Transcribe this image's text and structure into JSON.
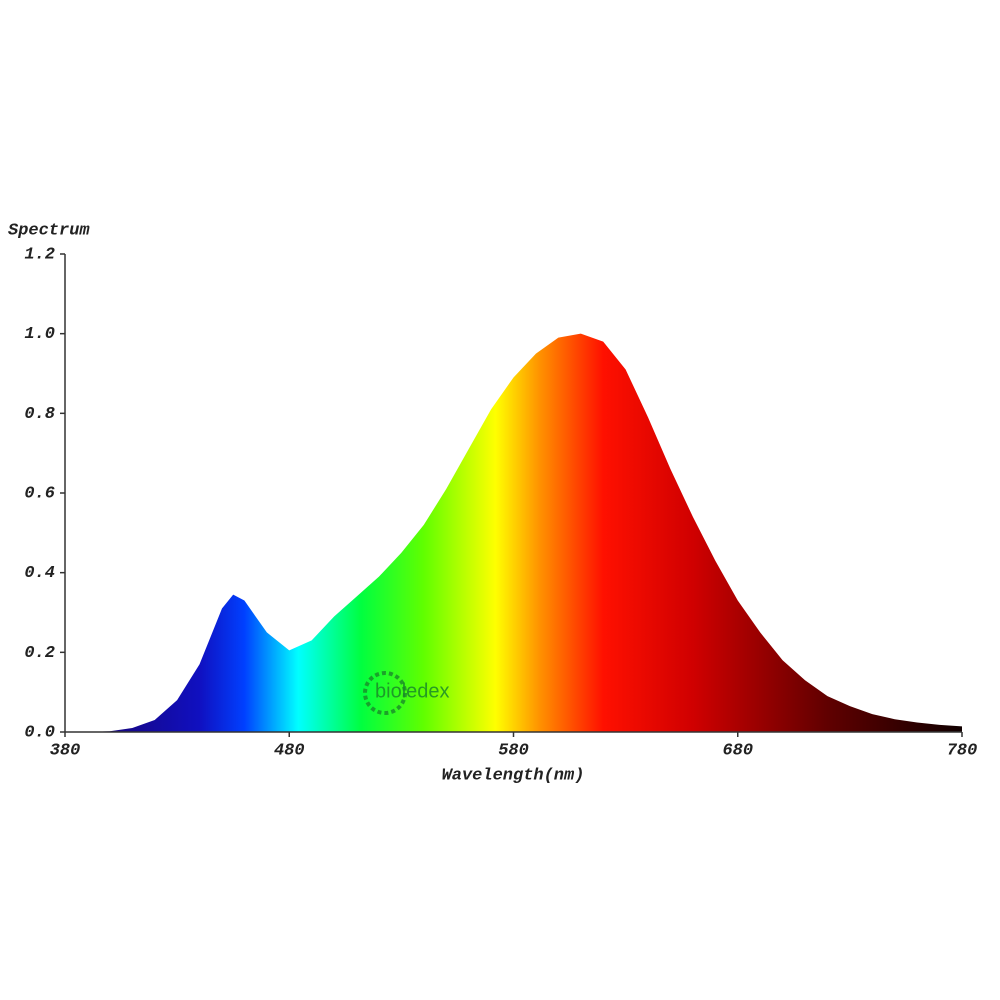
{
  "chart_data": {
    "type": "area",
    "y_label": "Spectrum",
    "x_label": "Wavelength(nm)",
    "watermark": "bioledex",
    "x": [
      380,
      390,
      400,
      410,
      420,
      430,
      440,
      450,
      455,
      460,
      470,
      480,
      490,
      500,
      510,
      520,
      530,
      540,
      550,
      560,
      570,
      580,
      590,
      600,
      610,
      620,
      630,
      640,
      650,
      660,
      670,
      680,
      690,
      700,
      710,
      720,
      730,
      740,
      750,
      760,
      770,
      780
    ],
    "values": [
      0,
      0,
      0.002,
      0.01,
      0.03,
      0.08,
      0.17,
      0.31,
      0.345,
      0.33,
      0.25,
      0.205,
      0.23,
      0.29,
      0.34,
      0.39,
      0.45,
      0.52,
      0.61,
      0.71,
      0.81,
      0.89,
      0.95,
      0.99,
      1.0,
      0.98,
      0.91,
      0.79,
      0.66,
      0.54,
      0.43,
      0.33,
      0.25,
      0.18,
      0.13,
      0.09,
      0.065,
      0.045,
      0.032,
      0.024,
      0.018,
      0.014
    ],
    "xlim": [
      380,
      780
    ],
    "ylim": [
      0,
      1.2
    ],
    "xticks": [
      380,
      480,
      580,
      680,
      780
    ],
    "yticks": [
      {
        "value": 0,
        "label": "0.0"
      },
      0.2,
      0.4,
      0.6,
      0.8,
      {
        "value": 1,
        "label": "1.0"
      },
      1.2
    ],
    "grid": false
  }
}
